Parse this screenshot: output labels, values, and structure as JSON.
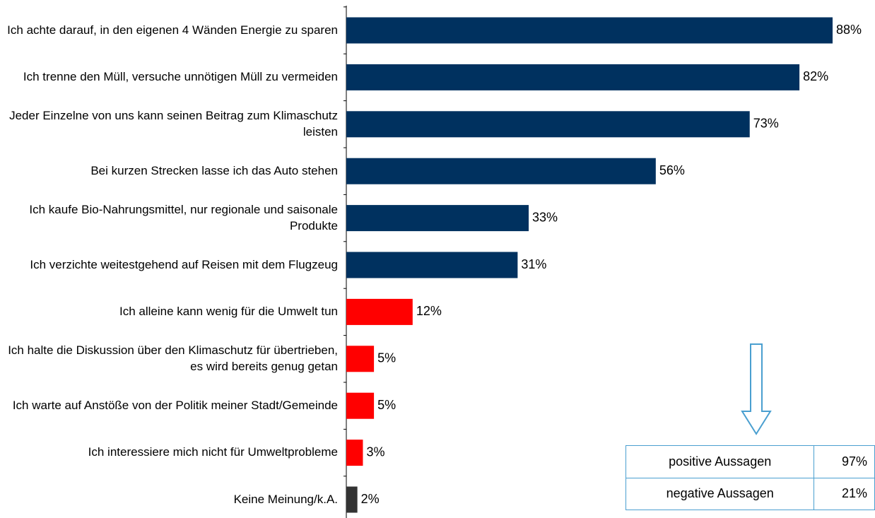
{
  "chart_data": {
    "type": "bar",
    "categories": [
      "Ich achte darauf, in den eigenen 4 Wänden Energie zu sparen",
      "Ich trenne den Müll, versuche unnötigen Müll zu vermeiden",
      "Jeder Einzelne von uns kann seinen Beitrag zum Klimaschutz leisten",
      "Bei kurzen Strecken lasse ich das Auto stehen",
      "Ich kaufe Bio-Nahrungsmittel, nur regionale und saisonale Produkte",
      "Ich verzichte weitestgehend auf Reisen mit dem Flugzeug",
      "Ich alleine kann wenig für die Umwelt tun",
      "Ich halte die Diskussion  über den Klimaschutz für übertrieben, es wird bereits genug getan",
      "Ich warte auf Anstöße von der Politik meiner Stadt/Gemeinde",
      "Ich interessiere mich nicht für Umweltprobleme",
      "Keine Meinung/k.A."
    ],
    "values": [
      88,
      82,
      73,
      56,
      33,
      31,
      12,
      5,
      5,
      3,
      2
    ],
    "value_labels": [
      "88%",
      "82%",
      "73%",
      "56%",
      "33%",
      "31%",
      "12%",
      "5%",
      "5%",
      "3%",
      "2%"
    ],
    "colors": [
      "#00315f",
      "#00315f",
      "#00315f",
      "#00315f",
      "#00315f",
      "#00315f",
      "#ff0000",
      "#ff0000",
      "#ff0000",
      "#ff0000",
      "#333333"
    ]
  },
  "summary_table": {
    "rows": [
      [
        "positive Aussagen",
        "97%"
      ],
      [
        "negative Aussagen",
        "21%"
      ]
    ]
  }
}
